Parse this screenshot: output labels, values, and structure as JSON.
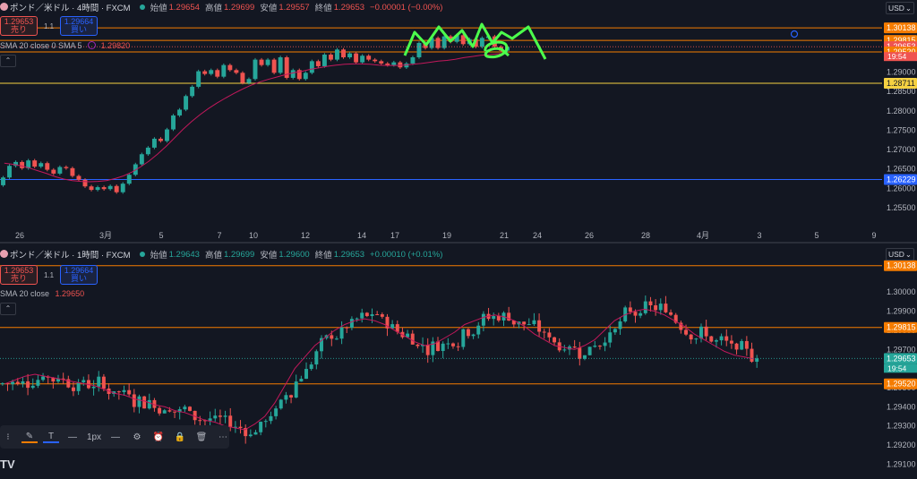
{
  "top": {
    "symbol": "ポンド／米ドル · 4時間 · FXCM",
    "o_label": "始値",
    "o": "1.29654",
    "h_label": "高値",
    "h": "1.29699",
    "l_label": "安値",
    "l": "1.29557",
    "c_label": "終値",
    "c": "1.29653",
    "chg": "−0.00001 (−0.00%)",
    "sell_price": "1.29653",
    "sell_label": "売り",
    "spread": "1.1",
    "buy_price": "1.29664",
    "buy_label": "買い",
    "indicator": "SMA 20 close 0 SMA 5",
    "indicator_value": "1.29820",
    "currency": "USD",
    "time_label": "19:54"
  },
  "bottom": {
    "symbol": "ポンド／米ドル · 1時間 · FXCM",
    "o_label": "始値",
    "o": "1.29643",
    "h_label": "高値",
    "h": "1.29699",
    "l_label": "安値",
    "l": "1.29600",
    "c_label": "終値",
    "c": "1.29653",
    "chg": "+0.00010 (+0.01%)",
    "sell_price": "1.29653",
    "sell_label": "売り",
    "spread": "1.1",
    "buy_price": "1.29664",
    "buy_label": "買い",
    "indicator": "SMA 20 close",
    "indicator_value": "1.29650",
    "currency": "USD",
    "time_label": "19:54"
  },
  "drawing_toolbar": {
    "width_label": "1px"
  },
  "logo_text": "TV",
  "colors": {
    "background": "#131722",
    "up": "#26a69a",
    "down": "#ef5350",
    "sma": "#c2185b",
    "orange_line": "#f57c00",
    "yellow_line": "#f5d142",
    "blue_line": "#2962ff",
    "hand_drawn": "#4cff4c"
  },
  "chart_data": [
    {
      "type": "candlestick",
      "timeframe": "4時間",
      "x_tick_labels": [
        "26",
        "3月",
        "5",
        "7",
        "10",
        "12",
        "14",
        "17",
        "19",
        "21",
        "24",
        "26",
        "28",
        "4月",
        "3",
        "5",
        "9"
      ],
      "y_ticks": [
        1.255,
        1.26,
        1.265,
        1.27,
        1.275,
        1.28,
        1.285,
        1.29
      ],
      "ylim": [
        1.252,
        1.3035
      ],
      "series": [
        {
          "name": "SMA 20 close",
          "values": [
            1.2665,
            1.2662,
            1.2658,
            1.2652,
            1.2645,
            1.2638,
            1.263,
            1.2624,
            1.262,
            1.2618,
            1.2617,
            1.2618,
            1.262,
            1.2625,
            1.2632,
            1.2642,
            1.2655,
            1.267,
            1.2688,
            1.2708,
            1.273,
            1.2752,
            1.2772,
            1.279,
            1.2806,
            1.282,
            1.2833,
            1.2845,
            1.2856,
            1.2866,
            1.2874,
            1.2881,
            1.2887,
            1.2893,
            1.2898,
            1.2902,
            1.2907,
            1.2911,
            1.2915,
            1.2918,
            1.292,
            1.2921,
            1.2921,
            1.292,
            1.2918,
            1.2917,
            1.2917,
            1.2918,
            1.292,
            1.2922,
            1.2925,
            1.2928,
            1.293,
            1.2933,
            1.2937,
            1.294,
            1.2943,
            1.2945,
            1.2947,
            1.2948
          ]
        }
      ],
      "candles": [
        {
          "o": 1.2608,
          "c": 1.2628
        },
        {
          "o": 1.2628,
          "c": 1.2658
        },
        {
          "o": 1.2658,
          "c": 1.2668
        },
        {
          "o": 1.2668,
          "c": 1.2652
        },
        {
          "o": 1.2652,
          "c": 1.2672
        },
        {
          "o": 1.2672,
          "c": 1.2656
        },
        {
          "o": 1.2656,
          "c": 1.2665
        },
        {
          "o": 1.2665,
          "c": 1.2648
        },
        {
          "o": 1.2648,
          "c": 1.2638
        },
        {
          "o": 1.2638,
          "c": 1.2655
        },
        {
          "o": 1.2655,
          "c": 1.2652
        },
        {
          "o": 1.2652,
          "c": 1.2632
        },
        {
          "o": 1.2632,
          "c": 1.2622
        },
        {
          "o": 1.2622,
          "c": 1.2605
        },
        {
          "o": 1.2605,
          "c": 1.2596
        },
        {
          "o": 1.2596,
          "c": 1.2603
        },
        {
          "o": 1.2603,
          "c": 1.2598
        },
        {
          "o": 1.2598,
          "c": 1.2606
        },
        {
          "o": 1.2606,
          "c": 1.259
        },
        {
          "o": 1.259,
          "c": 1.2612
        },
        {
          "o": 1.2612,
          "c": 1.2635
        },
        {
          "o": 1.2635,
          "c": 1.2662
        },
        {
          "o": 1.2662,
          "c": 1.2688
        },
        {
          "o": 1.2688,
          "c": 1.2705
        },
        {
          "o": 1.2705,
          "c": 1.2728
        },
        {
          "o": 1.2728,
          "c": 1.2722
        },
        {
          "o": 1.2722,
          "c": 1.2752
        },
        {
          "o": 1.2752,
          "c": 1.2788
        },
        {
          "o": 1.2788,
          "c": 1.2803
        },
        {
          "o": 1.2803,
          "c": 1.2838
        },
        {
          "o": 1.2838,
          "c": 1.2862
        },
        {
          "o": 1.2862,
          "c": 1.2902
        },
        {
          "o": 1.2902,
          "c": 1.2895
        },
        {
          "o": 1.2895,
          "c": 1.2905
        },
        {
          "o": 1.2905,
          "c": 1.2888
        },
        {
          "o": 1.2888,
          "c": 1.2918
        },
        {
          "o": 1.2918,
          "c": 1.2905
        },
        {
          "o": 1.2905,
          "c": 1.2898
        },
        {
          "o": 1.2898,
          "c": 1.2872
        },
        {
          "o": 1.2872,
          "c": 1.2882
        },
        {
          "o": 1.2882,
          "c": 1.2932
        },
        {
          "o": 1.2932,
          "c": 1.2918
        },
        {
          "o": 1.2918,
          "c": 1.2932
        },
        {
          "o": 1.2932,
          "c": 1.2898
        },
        {
          "o": 1.2898,
          "c": 1.2938
        },
        {
          "o": 1.2938,
          "c": 1.2885
        },
        {
          "o": 1.2885,
          "c": 1.2905
        },
        {
          "o": 1.2905,
          "c": 1.2882
        },
        {
          "o": 1.2882,
          "c": 1.2898
        },
        {
          "o": 1.2898,
          "c": 1.2928
        },
        {
          "o": 1.2928,
          "c": 1.2915
        },
        {
          "o": 1.2915,
          "c": 1.2945
        },
        {
          "o": 1.2945,
          "c": 1.2932
        },
        {
          "o": 1.2932,
          "c": 1.2958
        },
        {
          "o": 1.2958,
          "c": 1.2938
        },
        {
          "o": 1.2938,
          "c": 1.2948
        },
        {
          "o": 1.2948,
          "c": 1.2925
        },
        {
          "o": 1.2925,
          "c": 1.2942
        },
        {
          "o": 1.2942,
          "c": 1.2932
        },
        {
          "o": 1.2932,
          "c": 1.2928
        },
        {
          "o": 1.2928,
          "c": 1.2922
        },
        {
          "o": 1.2922,
          "c": 1.2918
        },
        {
          "o": 1.2918,
          "c": 1.2925
        },
        {
          "o": 1.2925,
          "c": 1.2912
        },
        {
          "o": 1.2912,
          "c": 1.2922
        },
        {
          "o": 1.2922,
          "c": 1.2938
        },
        {
          "o": 1.2938,
          "c": 1.2975
        },
        {
          "o": 1.2975,
          "c": 1.2962
        },
        {
          "o": 1.2962,
          "c": 1.2988
        },
        {
          "o": 1.2988,
          "c": 1.2962
        },
        {
          "o": 1.2962,
          "c": 1.2992
        },
        {
          "o": 1.2992,
          "c": 1.2978
        },
        {
          "o": 1.2978,
          "c": 1.2995
        },
        {
          "o": 1.2995,
          "c": 1.2972
        },
        {
          "o": 1.2972,
          "c": 1.2985
        },
        {
          "o": 1.2985,
          "c": 1.2965
        },
        {
          "o": 1.2965,
          "c": 1.2988
        },
        {
          "o": 1.2988,
          "c": 1.2992
        },
        {
          "o": 1.2992,
          "c": 1.2965
        },
        {
          "o": 1.2965,
          "c": 1.2955
        },
        {
          "o": 1.2955,
          "c": 1.2965
        }
      ],
      "price_labels": [
        {
          "price": 1.30138,
          "text": "1.30138",
          "color": "#f57c00"
        },
        {
          "price": 1.29815,
          "text": "1.29815",
          "color": "#f57c00"
        },
        {
          "price": 1.29653,
          "text": "1.29653",
          "color": "#ef5350"
        },
        {
          "price": 1.2952,
          "text": "1.29520",
          "color": "#f57c00"
        },
        {
          "price": 1.28711,
          "text": "1.28711",
          "color": "#f5d142"
        },
        {
          "price": 1.26229,
          "text": "1.26229",
          "color": "#2962ff"
        }
      ],
      "horizontal_lines": [
        {
          "price": 1.30138,
          "color": "#f57c00"
        },
        {
          "price": 1.29815,
          "color": "#f57c00"
        },
        {
          "price": 1.2952,
          "color": "#f57c00"
        },
        {
          "price": 1.28711,
          "color": "#f5d142"
        },
        {
          "price": 1.26229,
          "color": "#2962ff"
        }
      ]
    },
    {
      "type": "candlestick",
      "timeframe": "1時間",
      "y_ticks": [
        1.291,
        1.292,
        1.293,
        1.294,
        1.295,
        1.296,
        1.297,
        1.298,
        1.299,
        1.3
      ],
      "ylim": [
        1.2906,
        1.3016
      ],
      "series": [
        {
          "name": "SMA 20 close",
          "values": [
            1.2952,
            1.2954,
            1.2956,
            1.2957,
            1.2956,
            1.2955,
            1.2954,
            1.2953,
            1.2952,
            1.2951,
            1.2949,
            1.2947,
            1.2946,
            1.2944,
            1.2943,
            1.2941,
            1.294,
            1.2938,
            1.2937,
            1.2935,
            1.2933,
            1.2932,
            1.293,
            1.2929,
            1.2928,
            1.2931,
            1.2935,
            1.2942,
            1.2951,
            1.296,
            1.2966,
            1.2972,
            1.2976,
            1.298,
            1.2983,
            1.2985,
            1.2986,
            1.2985,
            1.2983,
            1.298,
            1.2977,
            1.2974,
            1.2972,
            1.2973,
            1.2976,
            1.2979,
            1.2983,
            1.2985,
            1.2987,
            1.2988,
            1.2987,
            1.2985,
            1.2982,
            1.2978,
            1.2975,
            1.2972,
            1.2971,
            1.297,
            1.2972,
            1.2975,
            1.298,
            1.2985,
            1.2988,
            1.299,
            1.2991,
            1.299,
            1.2988,
            1.2985,
            1.2982,
            1.2978,
            1.2975,
            1.2972,
            1.2969,
            1.2967,
            1.2966,
            1.2965
          ]
        }
      ],
      "price_labels": [
        {
          "price": 1.30138,
          "text": "1.30138",
          "color": "#f57c00"
        },
        {
          "price": 1.29815,
          "text": "1.29815",
          "color": "#f57c00"
        },
        {
          "price": 1.29653,
          "text": "1.29653",
          "color": "#26a69a"
        },
        {
          "price": 1.2952,
          "text": "1.29520",
          "color": "#f57c00"
        }
      ],
      "horizontal_lines": [
        {
          "price": 1.30138,
          "color": "#f57c00"
        },
        {
          "price": 1.29815,
          "color": "#f57c00"
        },
        {
          "price": 1.2952,
          "color": "#f57c00"
        }
      ]
    }
  ]
}
